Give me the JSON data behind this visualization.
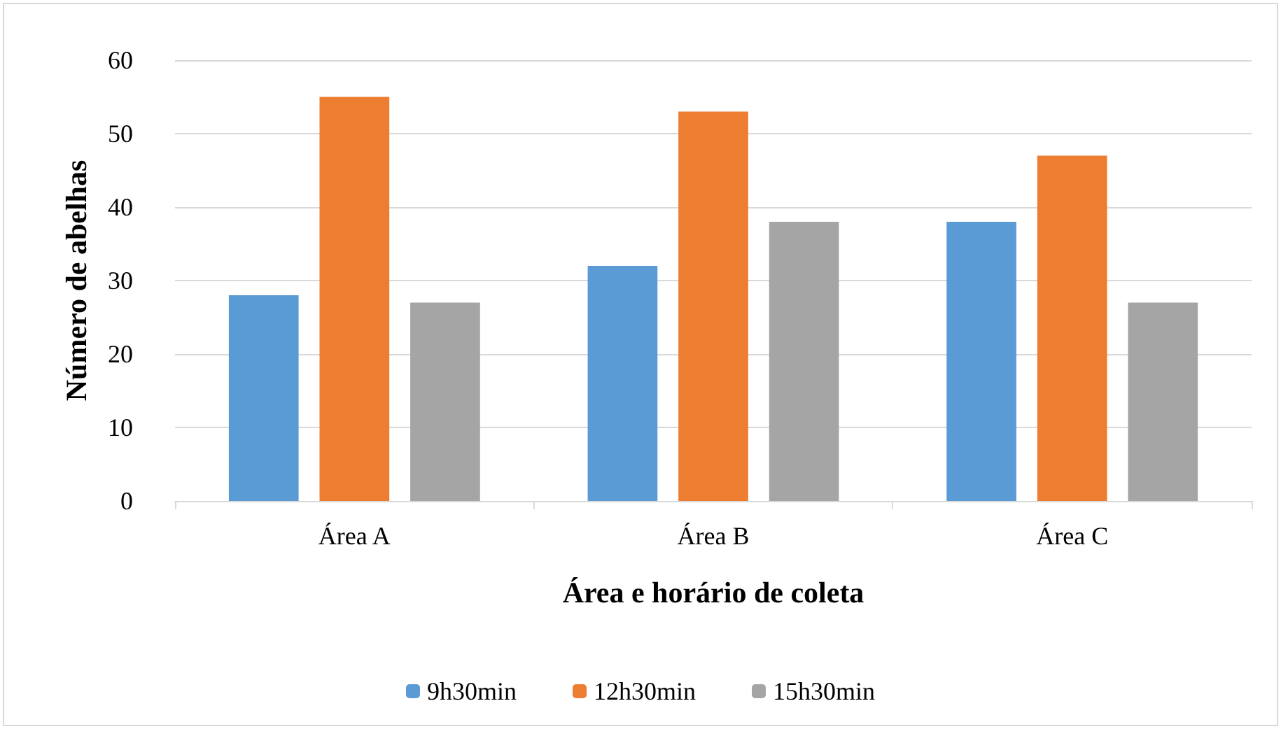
{
  "chart_data": {
    "type": "bar",
    "xlabel": "Área e horário de coleta",
    "ylabel": "Número de abelhas",
    "categories": [
      "Área A",
      "Área B",
      "Área C"
    ],
    "series": [
      {
        "name": "9h30min",
        "color": "#5b9bd5",
        "values": [
          28,
          32,
          38
        ]
      },
      {
        "name": "12h30min",
        "color": "#ed7d31",
        "values": [
          55,
          53,
          47
        ]
      },
      {
        "name": "15h30min",
        "color": "#a5a5a5",
        "values": [
          27,
          38,
          27
        ]
      }
    ],
    "ylim": [
      0,
      60
    ],
    "yticks": [
      0,
      10,
      20,
      30,
      40,
      50,
      60
    ],
    "grid": "y",
    "legend": "bottom"
  }
}
